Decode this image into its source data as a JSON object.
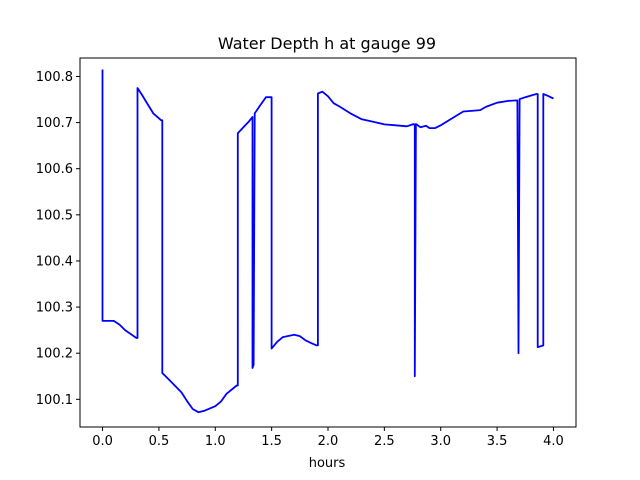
{
  "chart_data": {
    "type": "line",
    "title": "Water Depth h at gauge 99",
    "xlabel": "hours",
    "ylabel": "",
    "xlim": [
      -0.2,
      4.2
    ],
    "ylim": [
      100.04,
      100.84
    ],
    "xticks": [
      0.0,
      0.5,
      1.0,
      1.5,
      2.0,
      2.5,
      3.0,
      3.5,
      4.0
    ],
    "xtick_labels": [
      "0.0",
      "0.5",
      "1.0",
      "1.5",
      "2.0",
      "2.5",
      "3.0",
      "3.5",
      "4.0"
    ],
    "yticks": [
      100.1,
      100.2,
      100.3,
      100.4,
      100.5,
      100.6,
      100.7,
      100.8
    ],
    "ytick_labels": [
      "100.1",
      "100.2",
      "100.3",
      "100.4",
      "100.5",
      "100.6",
      "100.7",
      "100.8"
    ],
    "grid": false,
    "series": [
      {
        "color": "#0000ff",
        "x": [
          0.0,
          0.0,
          0.1,
          0.15,
          0.2,
          0.3,
          0.31,
          0.31,
          0.35,
          0.4,
          0.45,
          0.52,
          0.53,
          0.53,
          0.6,
          0.7,
          0.75,
          0.8,
          0.85,
          0.9,
          0.95,
          1.0,
          1.05,
          1.1,
          1.19,
          1.2,
          1.2,
          1.3,
          1.33,
          1.33,
          1.34,
          1.35,
          1.35,
          1.4,
          1.45,
          1.5,
          1.5,
          1.5,
          1.55,
          1.6,
          1.7,
          1.75,
          1.8,
          1.85,
          1.9,
          1.91,
          1.91,
          1.95,
          2.0,
          2.05,
          2.1,
          2.2,
          2.3,
          2.4,
          2.5,
          2.6,
          2.7,
          2.76,
          2.77,
          2.77,
          2.78,
          2.82,
          2.87,
          2.9,
          2.95,
          3.0,
          3.1,
          3.2,
          3.3,
          3.35,
          3.4,
          3.5,
          3.6,
          3.68,
          3.69,
          3.7,
          3.7,
          3.75,
          3.82,
          3.85,
          3.86,
          3.86,
          3.91,
          3.91,
          3.95,
          4.0
        ],
        "y": [
          100.815,
          100.27,
          100.27,
          100.262,
          100.25,
          100.233,
          100.233,
          100.775,
          100.76,
          100.74,
          100.72,
          100.705,
          100.705,
          100.157,
          100.14,
          100.115,
          100.096,
          100.079,
          100.072,
          100.075,
          100.08,
          100.085,
          100.095,
          100.112,
          100.13,
          100.13,
          100.677,
          100.703,
          100.712,
          100.168,
          100.175,
          100.715,
          100.72,
          100.738,
          100.755,
          100.755,
          100.755,
          100.21,
          100.225,
          100.235,
          100.24,
          100.237,
          100.228,
          100.222,
          100.217,
          100.217,
          100.763,
          100.767,
          100.757,
          100.742,
          100.735,
          100.72,
          100.707,
          100.702,
          100.696,
          100.694,
          100.692,
          100.697,
          100.695,
          100.15,
          100.697,
          100.69,
          100.693,
          100.688,
          100.688,
          100.694,
          100.709,
          100.724,
          100.726,
          100.727,
          100.734,
          100.743,
          100.747,
          100.748,
          100.2,
          100.748,
          100.751,
          100.755,
          100.76,
          100.762,
          100.762,
          100.213,
          100.217,
          100.762,
          100.758,
          100.752
        ]
      }
    ]
  }
}
